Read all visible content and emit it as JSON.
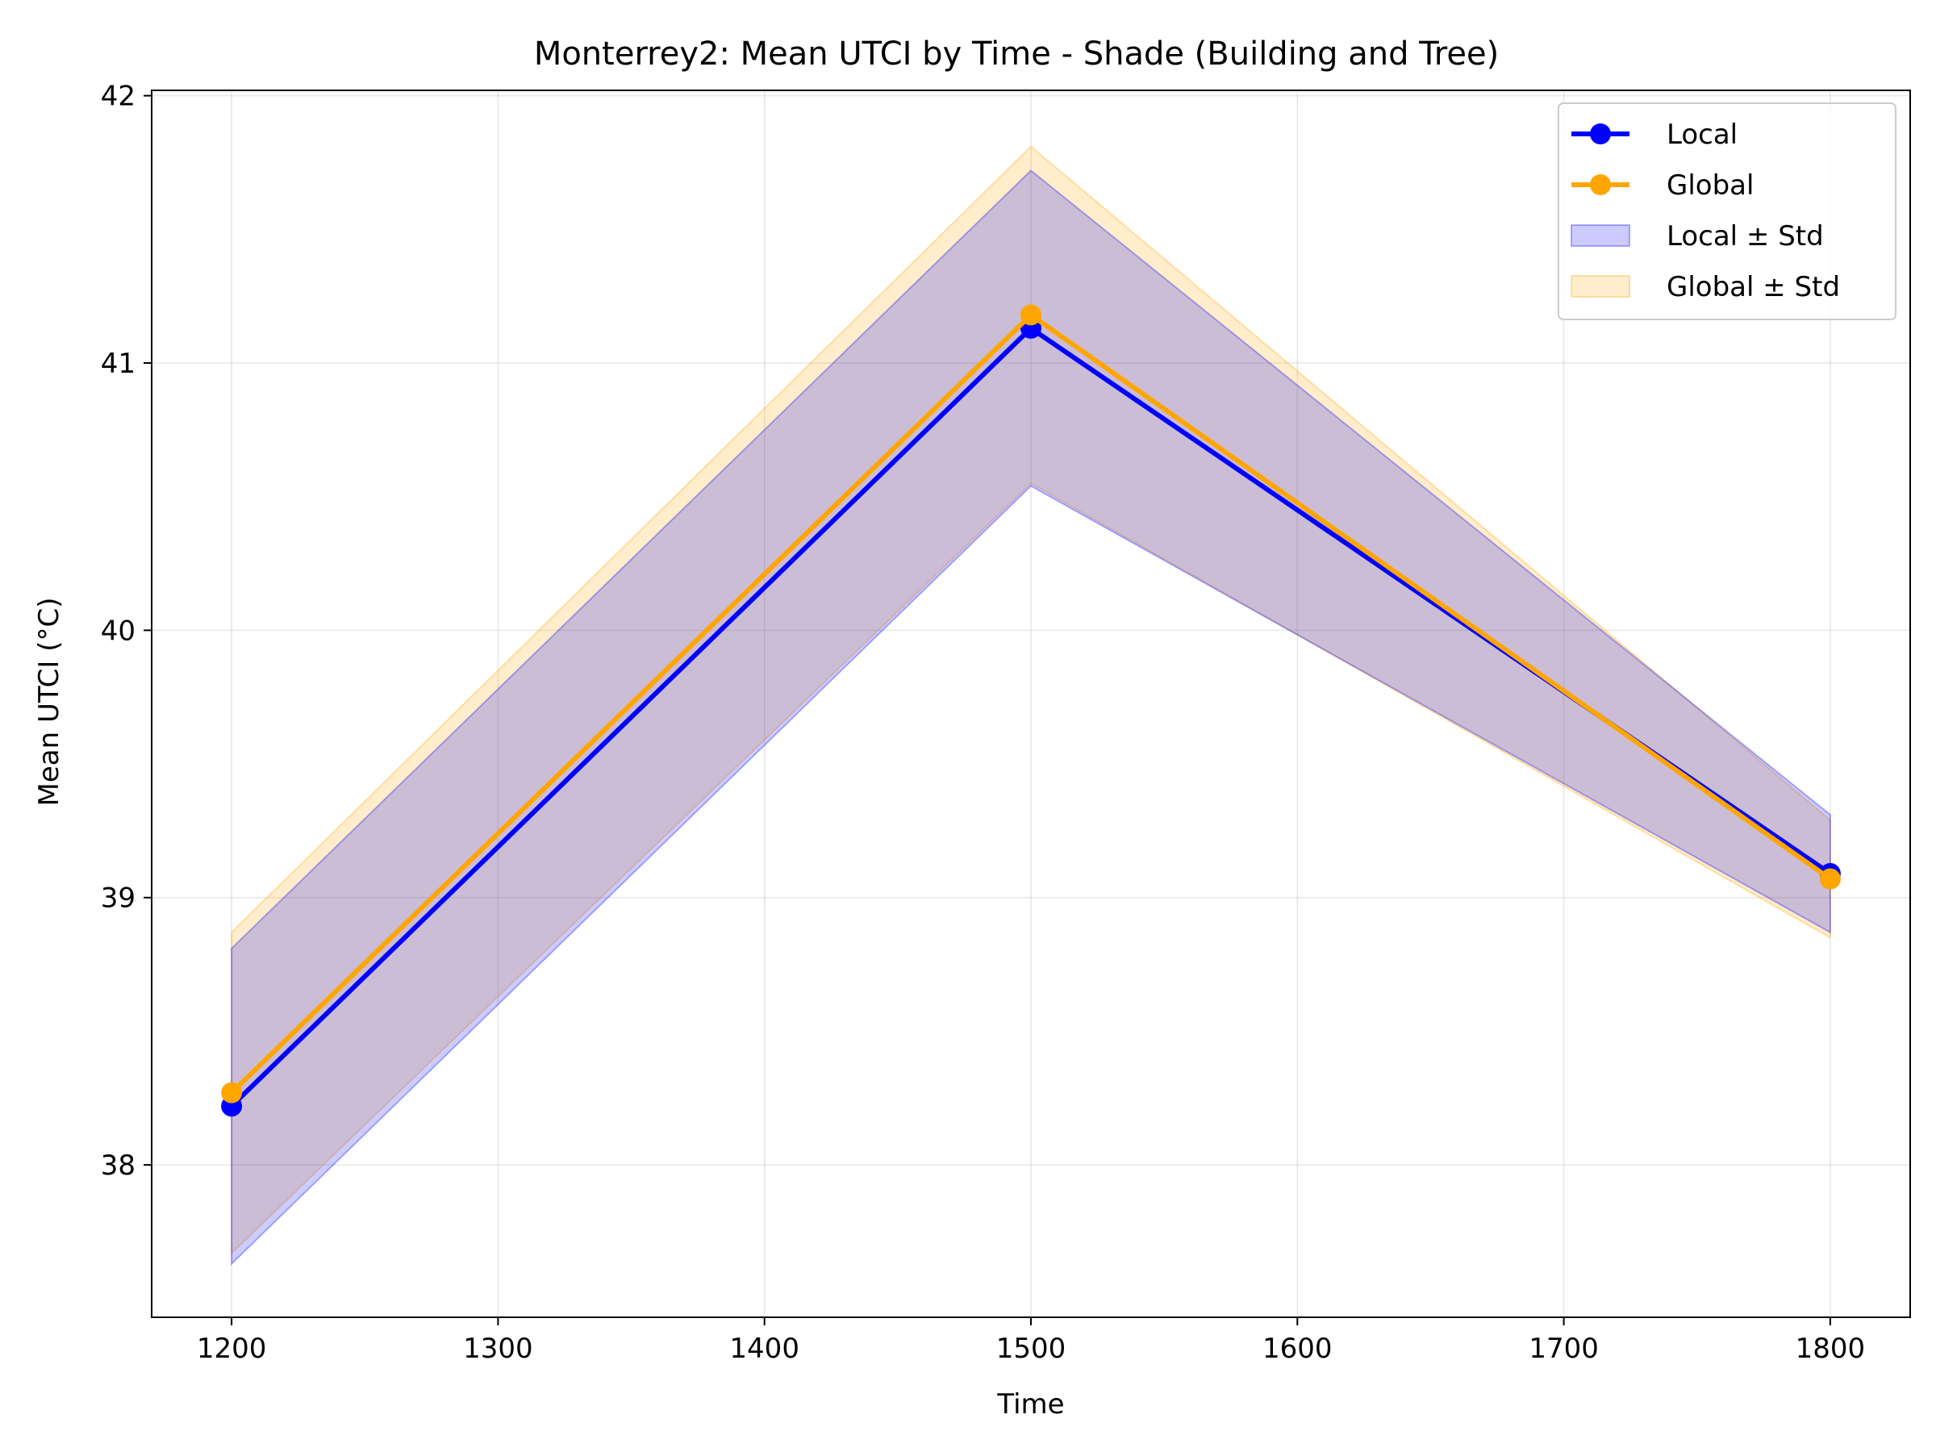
{
  "chart_data": {
    "type": "line",
    "title": "Monterrey2: Mean UTCI by Time - Shade (Building and Tree)",
    "xlabel": "Time",
    "ylabel": "Mean UTCI (°C)",
    "x": [
      1200,
      1500,
      1800
    ],
    "xlim": [
      1170,
      1830
    ],
    "ylim": [
      37.43,
      42.02
    ],
    "xticks": [
      1200,
      1300,
      1400,
      1500,
      1600,
      1700,
      1800
    ],
    "yticks": [
      38,
      39,
      40,
      41,
      42
    ],
    "grid": true,
    "legend_position": "top-right",
    "series": [
      {
        "name": "Local",
        "color": "#0000ff",
        "values": [
          38.22,
          41.13,
          39.09
        ],
        "std": [
          0.59,
          0.59,
          0.22
        ]
      },
      {
        "name": "Global",
        "color": "#ffa500",
        "values": [
          38.27,
          41.18,
          39.07
        ],
        "std": [
          0.6,
          0.63,
          0.22
        ]
      }
    ],
    "bands": [
      {
        "name": "Local ± Std",
        "color": "#0000ff",
        "opacity": 0.2
      },
      {
        "name": "Global ± Std",
        "color": "#ffa500",
        "opacity": 0.2
      }
    ]
  }
}
